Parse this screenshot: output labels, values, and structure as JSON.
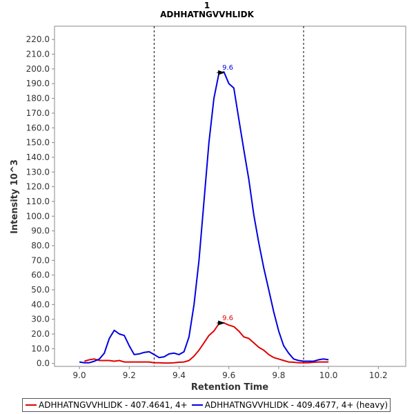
{
  "chart_data": {
    "type": "line",
    "title": "1",
    "subtitle": "ADHHATNGVVHLIDK",
    "xlabel": "Retention Time",
    "ylabel": "Intensity 10^3",
    "xlim": [
      8.9,
      10.31
    ],
    "ylim": [
      -2,
      229
    ],
    "xticks": [
      "9.0",
      "9.2",
      "9.4",
      "9.6",
      "9.8",
      "10.0",
      "10.2"
    ],
    "xtick_values": [
      9.0,
      9.2,
      9.4,
      9.6,
      9.8,
      10.0,
      10.2
    ],
    "yticks": [
      "0.0",
      "10.0",
      "20.0",
      "30.0",
      "40.0",
      "50.0",
      "60.0",
      "70.0",
      "80.0",
      "90.0",
      "100.0",
      "110.0",
      "120.0",
      "130.0",
      "140.0",
      "150.0",
      "160.0",
      "170.0",
      "180.0",
      "190.0",
      "200.0",
      "210.0",
      "220.0"
    ],
    "ytick_values": [
      0,
      10,
      20,
      30,
      40,
      50,
      60,
      70,
      80,
      90,
      100,
      110,
      120,
      130,
      140,
      150,
      160,
      170,
      180,
      190,
      200,
      210,
      220
    ],
    "grid": false,
    "legend_position": "bottom",
    "boundaries": [
      9.3,
      9.9
    ],
    "series": [
      {
        "name": "ADHHATNGVVHLIDK - 407.4641, 4+",
        "color": "#e00000",
        "peak_label": "9.6",
        "peak_x": 9.59,
        "peak_y": 27.5,
        "x": [
          9.02,
          9.04,
          9.06,
          9.08,
          9.1,
          9.12,
          9.14,
          9.16,
          9.18,
          9.2,
          9.22,
          9.24,
          9.26,
          9.28,
          9.3,
          9.32,
          9.34,
          9.36,
          9.38,
          9.4,
          9.42,
          9.44,
          9.46,
          9.48,
          9.5,
          9.52,
          9.54,
          9.56,
          9.58,
          9.6,
          9.62,
          9.64,
          9.66,
          9.68,
          9.7,
          9.72,
          9.74,
          9.76,
          9.78,
          9.8,
          9.82,
          9.84,
          9.86,
          9.88,
          9.9,
          9.92,
          9.94,
          9.96,
          9.98,
          10.0
        ],
        "y": [
          1.5,
          2.5,
          3,
          2,
          2,
          2,
          1.5,
          2,
          1,
          1,
          1,
          1,
          1,
          1,
          0.5,
          0.5,
          0.3,
          0.3,
          0.5,
          0.8,
          1,
          2,
          5,
          9,
          14,
          19,
          22,
          27,
          27.5,
          26,
          25,
          22,
          18,
          17,
          14,
          11,
          9,
          6,
          4,
          3,
          2,
          1,
          0.8,
          0.5,
          0.5,
          0.5,
          0.8,
          1,
          1,
          1
        ]
      },
      {
        "name": "ADHHATNGVVHLIDK - 409.4677, 4+ (heavy)",
        "color": "#0000e0",
        "peak_label": "9.6",
        "peak_x": 9.59,
        "peak_y": 197.5,
        "x": [
          9.0,
          9.02,
          9.04,
          9.06,
          9.08,
          9.1,
          9.12,
          9.14,
          9.16,
          9.18,
          9.2,
          9.22,
          9.24,
          9.26,
          9.28,
          9.3,
          9.32,
          9.34,
          9.36,
          9.38,
          9.4,
          9.42,
          9.44,
          9.46,
          9.48,
          9.5,
          9.52,
          9.54,
          9.56,
          9.58,
          9.6,
          9.62,
          9.64,
          9.66,
          9.68,
          9.7,
          9.72,
          9.74,
          9.76,
          9.78,
          9.8,
          9.82,
          9.84,
          9.86,
          9.88,
          9.9,
          9.92,
          9.94,
          9.96,
          9.98,
          10.0
        ],
        "y": [
          1,
          0.5,
          0.5,
          1.5,
          3,
          7,
          17,
          22.5,
          20,
          19,
          12,
          6,
          6.5,
          7.5,
          8,
          6,
          4,
          4.5,
          6.5,
          7,
          6,
          8,
          18,
          40,
          70,
          110,
          150,
          180,
          197,
          198,
          190,
          187,
          166,
          145,
          125,
          101,
          82,
          65,
          50,
          35,
          22,
          12,
          7,
          3,
          2,
          1.5,
          1.5,
          1.5,
          2.5,
          3,
          2.5
        ]
      }
    ]
  }
}
